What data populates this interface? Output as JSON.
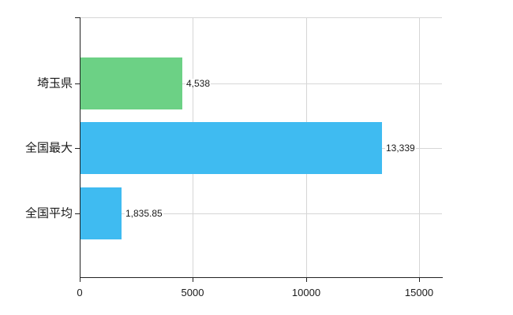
{
  "chart_data": {
    "type": "bar",
    "orientation": "horizontal",
    "title": "",
    "xlabel": "",
    "ylabel": "",
    "categories": [
      "埼玉県",
      "全国最大",
      "全国平均"
    ],
    "values": [
      4538,
      13339,
      1835.85
    ],
    "value_labels": [
      "4,538",
      "13,339",
      "1,835.85"
    ],
    "bar_colors": [
      "#6cd185",
      "#3fbbf1",
      "#3fbbf1"
    ],
    "xlim": [
      0,
      16000
    ],
    "x_ticks": [
      0,
      5000,
      10000,
      15000
    ],
    "x_tick_labels": [
      "0",
      "5000",
      "10000",
      "15000"
    ],
    "grid": true,
    "legend": false
  },
  "colors": {
    "axis": "#222222",
    "grid": "#d6d6d6",
    "text": "#1a1a1a",
    "background": "#ffffff",
    "green_bar": "#6cd185",
    "blue_bar": "#3fbbf1"
  }
}
